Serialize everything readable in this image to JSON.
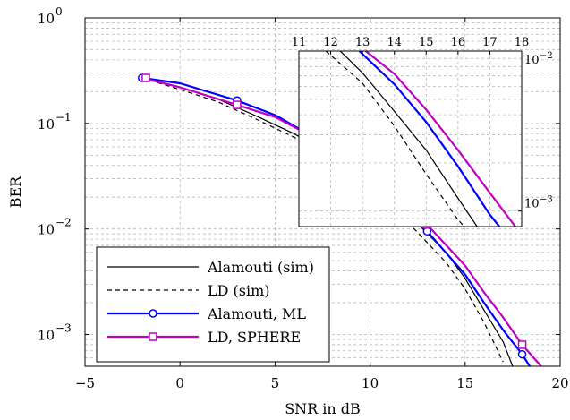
{
  "chart_data": [
    {
      "type": "line",
      "xlabel": "SNR in dB",
      "ylabel": "BER",
      "yscale": "log",
      "xlim": [
        -5,
        20
      ],
      "ylim": [
        0.0005,
        1
      ],
      "grid": true,
      "legend_position": "bottom-left",
      "x_ticks": [
        {
          "value": -5,
          "label": "−5"
        },
        {
          "value": 0,
          "label": "0"
        },
        {
          "value": 5,
          "label": "5"
        },
        {
          "value": 10,
          "label": "10"
        },
        {
          "value": 15,
          "label": "15"
        },
        {
          "value": 20,
          "label": "20"
        }
      ],
      "y_ticks": [
        {
          "value": 1,
          "base": "10",
          "exp": "0"
        },
        {
          "value": 0.1,
          "base": "10",
          "exp": "−1"
        },
        {
          "value": 0.01,
          "base": "10",
          "exp": "−2"
        },
        {
          "value": 0.001,
          "base": "10",
          "exp": "−3"
        }
      ],
      "series": [
        {
          "name": "Alamouti (sim)",
          "color": "#000000",
          "dash": "solid",
          "marker": "none",
          "x": [
            -2,
            0,
            2,
            4,
            6,
            8,
            10,
            12,
            14,
            15,
            16,
            17,
            17.5
          ],
          "y": [
            0.27,
            0.22,
            0.17,
            0.118,
            0.08,
            0.05,
            0.028,
            0.0138,
            0.006,
            0.0034,
            0.0017,
            0.00085,
            0.0005
          ]
        },
        {
          "name": "LD (sim)",
          "color": "#000000",
          "dash": "dashed",
          "marker": "none",
          "x": [
            -2,
            0,
            2,
            4,
            6,
            8,
            10,
            12,
            14,
            15,
            16,
            17
          ],
          "y": [
            0.27,
            0.21,
            0.16,
            0.11,
            0.074,
            0.045,
            0.024,
            0.0115,
            0.0048,
            0.0027,
            0.0013,
            0.00055
          ]
        },
        {
          "name": "Alamouti, ML",
          "color": "#0000ff",
          "dash": "solid",
          "marker": "circle",
          "x": [
            -2,
            0,
            3,
            5,
            8,
            10,
            13,
            15,
            16,
            17,
            18,
            18.4
          ],
          "y": [
            0.27,
            0.24,
            0.165,
            0.12,
            0.059,
            0.032,
            0.0095,
            0.0037,
            0.002,
            0.0011,
            0.00065,
            0.0005
          ],
          "marker_x": [
            -2,
            3,
            8,
            13,
            18
          ],
          "marker_y": [
            0.27,
            0.165,
            0.059,
            0.0095,
            0.00065
          ]
        },
        {
          "name": "LD, SPHERE",
          "color": "#c000c0",
          "dash": "solid",
          "marker": "square",
          "x": [
            -2,
            0,
            3,
            5,
            8,
            10,
            13,
            15,
            16,
            17,
            18,
            19
          ],
          "y": [
            0.27,
            0.22,
            0.15,
            0.115,
            0.06,
            0.035,
            0.011,
            0.0045,
            0.0025,
            0.00145,
            0.0008,
            0.0005
          ],
          "marker_x": [
            -1.8,
            3,
            8,
            13,
            18
          ],
          "marker_y": [
            0.27,
            0.15,
            0.06,
            0.011,
            0.0008
          ]
        }
      ]
    },
    {
      "type": "line",
      "panel": "inset-top-right",
      "yscale": "log",
      "xlim": [
        11,
        18
      ],
      "ylim": [
        0.0008,
        0.01
      ],
      "grid": true,
      "x_ticks": [
        {
          "value": 11,
          "label": "11"
        },
        {
          "value": 12,
          "label": "12"
        },
        {
          "value": 13,
          "label": "13"
        },
        {
          "value": 14,
          "label": "14"
        },
        {
          "value": 15,
          "label": "15"
        },
        {
          "value": 16,
          "label": "16"
        },
        {
          "value": 17,
          "label": "17"
        },
        {
          "value": 18,
          "label": "18"
        }
      ],
      "y_ticks": [
        {
          "value": 0.01,
          "base": "10",
          "exp": "−2"
        },
        {
          "value": 0.001,
          "base": "10",
          "exp": "−3"
        }
      ],
      "series": [
        {
          "color": "#000000",
          "dash": "solid",
          "x": [
            12.3,
            13,
            14,
            15,
            16,
            16.6
          ],
          "y": [
            0.01,
            0.0073,
            0.0042,
            0.0024,
            0.0012,
            0.0008
          ]
        },
        {
          "color": "#000000",
          "dash": "dashed",
          "x": [
            11.85,
            13,
            14,
            15,
            16,
            16.2
          ],
          "y": [
            0.01,
            0.0063,
            0.0034,
            0.0017,
            0.00088,
            0.0008
          ]
        },
        {
          "color": "#0000ff",
          "dash": "solid",
          "x": [
            12.9,
            14,
            15,
            16,
            17,
            17.3
          ],
          "y": [
            0.01,
            0.0062,
            0.0036,
            0.0019,
            0.00095,
            0.0008
          ]
        },
        {
          "color": "#c000c0",
          "dash": "solid",
          "x": [
            13.1,
            14,
            15,
            16,
            17,
            17.8
          ],
          "y": [
            0.01,
            0.0072,
            0.0043,
            0.0024,
            0.0013,
            0.0008
          ]
        }
      ]
    }
  ]
}
